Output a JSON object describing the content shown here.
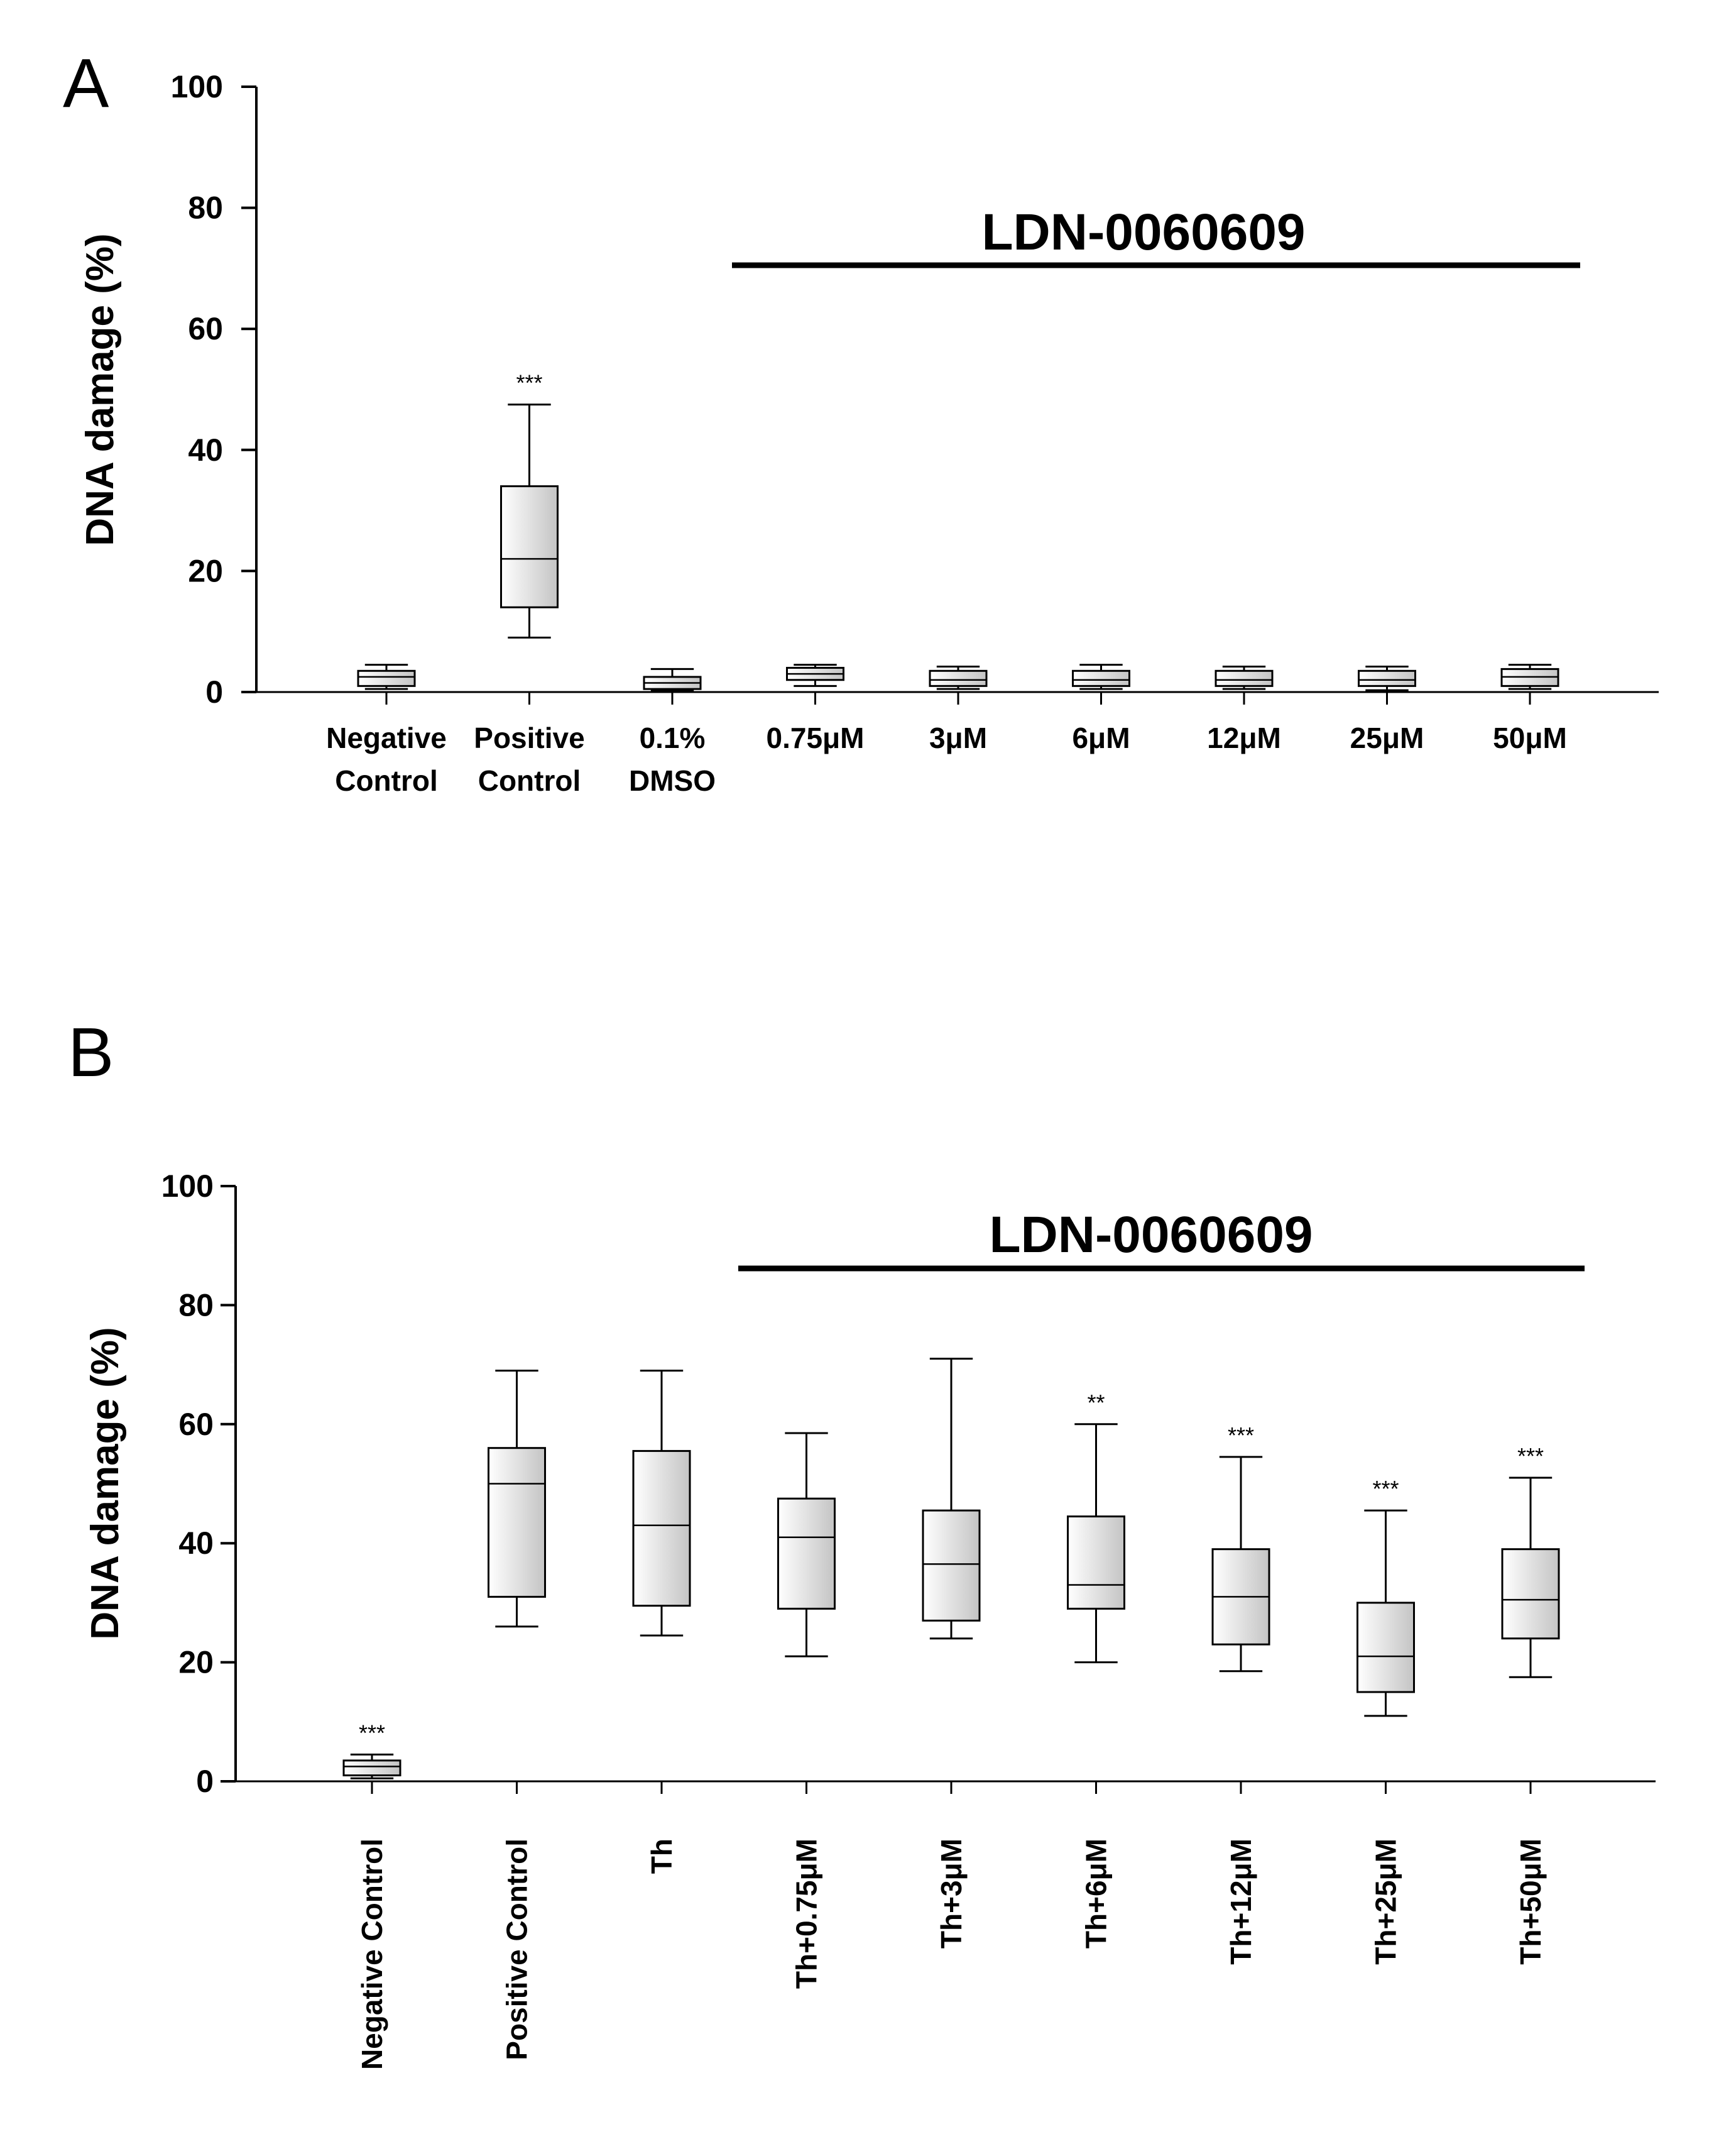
{
  "chart_data": [
    {
      "type": "box",
      "panel_label": "A",
      "ylabel": "DNA damage (%)",
      "ylim": [
        0,
        100
      ],
      "yticks": [
        "0",
        "20",
        "40",
        "60",
        "80",
        "100"
      ],
      "bracket_label": "LDN-0060609",
      "categories": [
        "Negative\nControl",
        "Positive\nControl",
        "0.1%\nDMSO",
        "0.75μM",
        "3μM",
        "6μM",
        "12μM",
        "25μM",
        "50μM"
      ],
      "boxes": [
        {
          "min": 0.5,
          "q1": 1.0,
          "median": 2.5,
          "q3": 3.5,
          "max": 4.5,
          "sig": ""
        },
        {
          "min": 9,
          "q1": 14,
          "median": 22,
          "q3": 34,
          "max": 47.5,
          "sig": "***"
        },
        {
          "min": 0.3,
          "q1": 0.5,
          "median": 1.5,
          "q3": 2.5,
          "max": 3.8,
          "sig": ""
        },
        {
          "min": 1.0,
          "q1": 2.0,
          "median": 3.0,
          "q3": 4.0,
          "max": 4.5,
          "sig": ""
        },
        {
          "min": 0.5,
          "q1": 1.0,
          "median": 2.0,
          "q3": 3.5,
          "max": 4.2,
          "sig": ""
        },
        {
          "min": 0.5,
          "q1": 1.0,
          "median": 2.0,
          "q3": 3.5,
          "max": 4.5,
          "sig": ""
        },
        {
          "min": 0.5,
          "q1": 1.0,
          "median": 2.0,
          "q3": 3.5,
          "max": 4.2,
          "sig": ""
        },
        {
          "min": 0.3,
          "q1": 1.0,
          "median": 2.0,
          "q3": 3.5,
          "max": 4.2,
          "sig": ""
        },
        {
          "min": 0.5,
          "q1": 1.0,
          "median": 2.5,
          "q3": 3.8,
          "max": 4.5,
          "sig": ""
        }
      ]
    },
    {
      "type": "box",
      "panel_label": "B",
      "ylabel": "DNA damage (%)",
      "ylim": [
        0,
        100
      ],
      "yticks": [
        "0",
        "20",
        "40",
        "60",
        "80",
        "100"
      ],
      "bracket_label": "LDN-0060609",
      "categories": [
        "Negative Control",
        "Positive Control",
        "Th",
        "Th+0.75μM",
        "Th+3μM",
        "Th+6μM",
        "Th+12μM",
        "Th+25μM",
        "Th+50μM"
      ],
      "boxes": [
        {
          "min": 0.5,
          "q1": 1.0,
          "median": 2.5,
          "q3": 3.5,
          "max": 4.5,
          "sig": "***"
        },
        {
          "min": 26,
          "q1": 31,
          "median": 50,
          "q3": 56,
          "max": 69,
          "sig": ""
        },
        {
          "min": 24.5,
          "q1": 29.5,
          "median": 43,
          "q3": 55.5,
          "max": 69,
          "sig": ""
        },
        {
          "min": 21,
          "q1": 29,
          "median": 41,
          "q3": 47.5,
          "max": 58.5,
          "sig": ""
        },
        {
          "min": 24,
          "q1": 27,
          "median": 36.5,
          "q3": 45.5,
          "max": 71,
          "sig": ""
        },
        {
          "min": 20,
          "q1": 29,
          "median": 33,
          "q3": 44.5,
          "max": 60,
          "sig": "**"
        },
        {
          "min": 18.5,
          "q1": 23,
          "median": 31,
          "q3": 39,
          "max": 54.5,
          "sig": "***"
        },
        {
          "min": 11,
          "q1": 15,
          "median": 21,
          "q3": 30,
          "max": 45.5,
          "sig": "***"
        },
        {
          "min": 17.5,
          "q1": 24,
          "median": 30.5,
          "q3": 39,
          "max": 51,
          "sig": "***"
        }
      ]
    }
  ]
}
